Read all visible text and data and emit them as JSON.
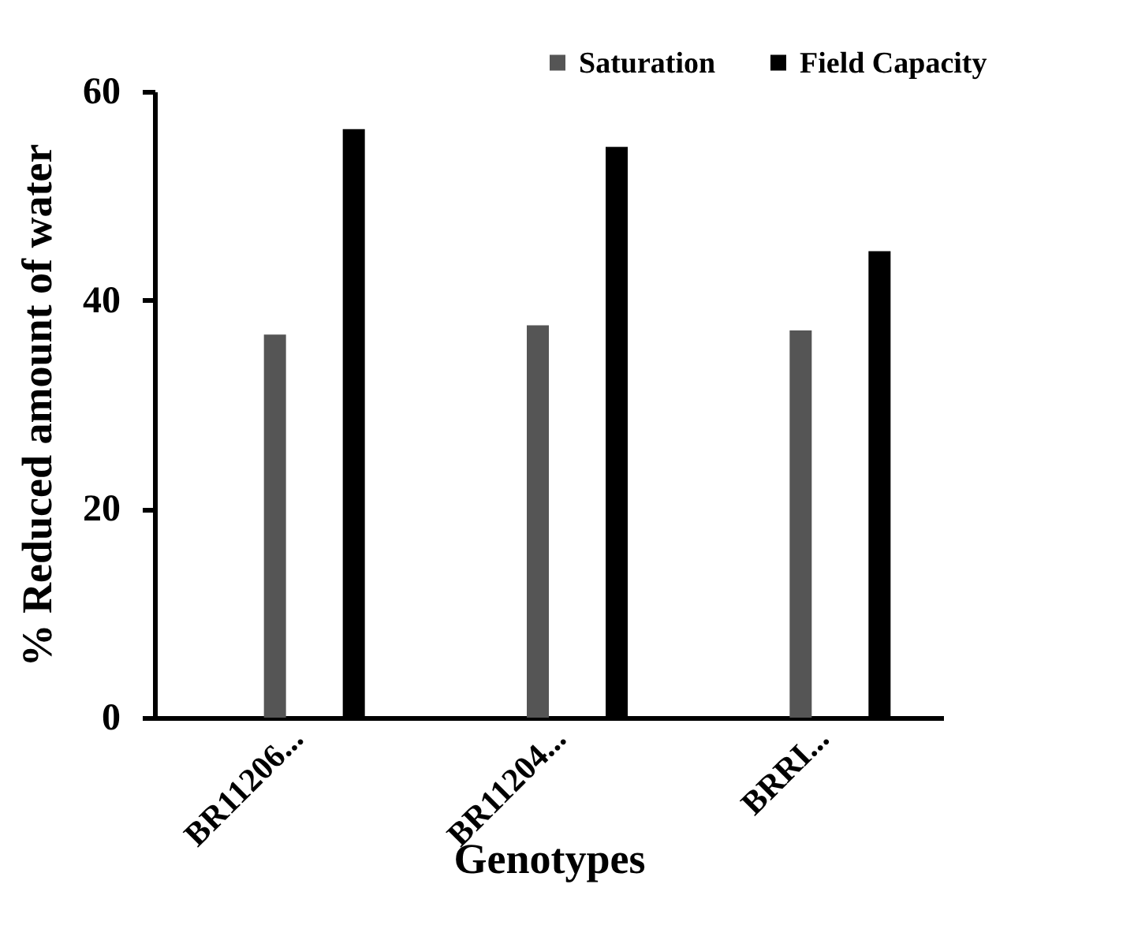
{
  "chart_data": {
    "type": "bar",
    "xlabel": "Genotypes",
    "ylabel": "% Reduced amount of water",
    "categories": [
      "BR11206...",
      "BR11204...",
      "BRRI..."
    ],
    "series": [
      {
        "name": "Saturation",
        "color": "#555555",
        "values": [
          36.7,
          37.6,
          37.1
        ]
      },
      {
        "name": "Field Capacity",
        "color": "#000000",
        "values": [
          56.4,
          54.7,
          44.7
        ]
      }
    ],
    "ylim": [
      0,
      60
    ],
    "yticks": [
      0,
      20,
      40,
      60
    ],
    "grid": false,
    "legend": "top right"
  }
}
